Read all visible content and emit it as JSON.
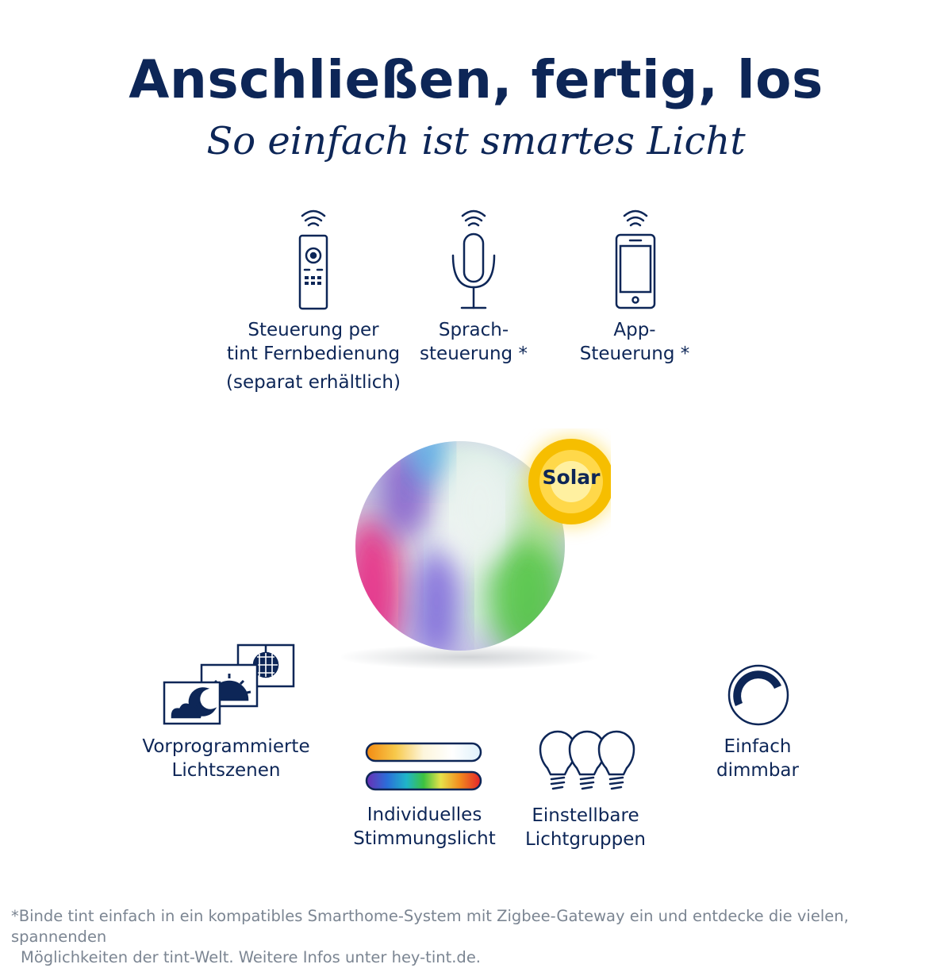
{
  "header": {
    "title": "Anschließen, fertig, los",
    "subtitle": "So einfach ist smartes Licht"
  },
  "controls": [
    {
      "icon": "remote-control-icon",
      "line1": "Steuerung per",
      "line2": "tint Fernbedienung",
      "note": "(separat erhältlich)"
    },
    {
      "icon": "microphone-icon",
      "line1": "Sprach-",
      "line2": "steuerung *"
    },
    {
      "icon": "smartphone-icon",
      "line1": "App-",
      "line2": "Steuerung *"
    }
  ],
  "product": {
    "badge": "Solar",
    "colors": {
      "badge_outer": "#f7c300",
      "badge_inner": "#fff3a8"
    }
  },
  "features": [
    {
      "icon": "light-scenes-icon",
      "line1": "Vorprogrammierte",
      "line2": "Lichtszenen"
    },
    {
      "icon": "color-spectrum-icon",
      "line1": "Individuelles",
      "line2": "Stimmungslicht"
    },
    {
      "icon": "bulb-group-icon",
      "line1": "Einstellbare",
      "line2": "Lichtgruppen"
    },
    {
      "icon": "dimmer-icon",
      "line1": "Einfach",
      "line2": "dimmbar"
    }
  ],
  "footnote": {
    "line1": "*Binde tint einfach in ein kompatibles Smarthome-System mit Zigbee-Gateway ein und entdecke die vielen, spannenden",
    "line2": "Möglichkeiten der tint-Welt. Weitere Infos unter hey-tint.de."
  },
  "colors": {
    "navy": "#0d2657",
    "gray_text": "#7b8592"
  }
}
